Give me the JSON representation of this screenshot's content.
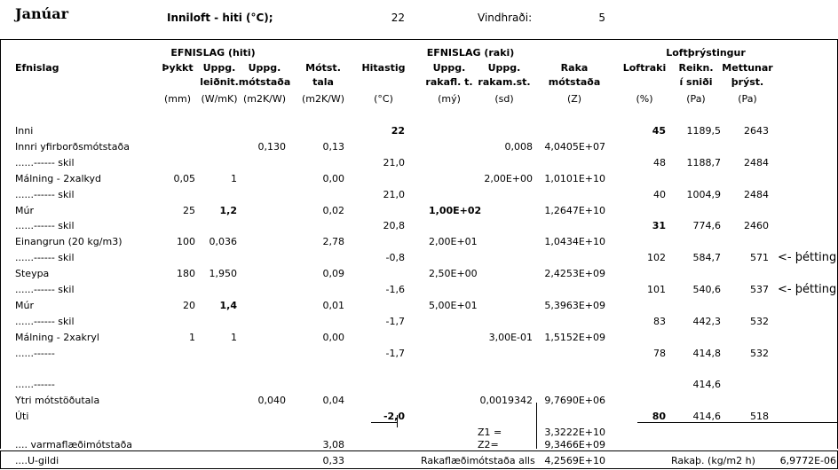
{
  "header": {
    "month": "Janúar",
    "inside_temp_label": "Inniloft - hiti (°C);",
    "inside_temp_value": "22",
    "wind_label": "Vindhraði:",
    "wind_value": "5"
  },
  "groups": {
    "heat": "EFNISLAG (hiti)",
    "moisture": "EFNISLAG (raki)",
    "pressure": "Loftþrýstingur"
  },
  "columns": {
    "material": "Efnislag",
    "thickness": "Þykkt",
    "cond_1": "Uppg.",
    "cond_2": "leiðnit.",
    "tres_1": "Uppg.",
    "tres_2": "mótstaða",
    "mres_1": "Mótst.",
    "mres_2": "tala",
    "temp": "Hitastig",
    "perm_1": "Uppg.",
    "perm_2": "rakafl. t.",
    "vres_1": "Uppg.",
    "vres_2": "rakam.st.",
    "moist_1": "Raka",
    "moist_2": "mótstaða",
    "rh": "Loftraki",
    "calc_1": "Reikn.",
    "calc_2": "í sniði",
    "sat_1": "Mettunar",
    "sat_2": "þrýst."
  },
  "units": {
    "thickness": "(mm)",
    "cond": "(W/mK)",
    "tres": "(m2K/W)",
    "mres": "(m2K/W)",
    "temp": "(°C)",
    "perm": "(mý)",
    "vres": "(sd)",
    "moist": "(Z)",
    "rh": "(%)",
    "calc": "(Pa)",
    "sat": "(Pa)"
  },
  "rows": [
    {
      "name": "Inni",
      "thick": "",
      "cond": "",
      "tres": "",
      "mres": "",
      "temp": "22",
      "perm": "",
      "vres": "",
      "moist": "",
      "rh": "45",
      "calc": "1189,5",
      "sat": "2643",
      "note": ""
    },
    {
      "name": "Innri yfirborðsmótstaða",
      "thick": "",
      "cond": "",
      "tres": "0,130",
      "mres": "0,13",
      "temp": "",
      "perm": "",
      "vres": "0,008",
      "moist": "4,0405E+07",
      "rh": "",
      "calc": "",
      "sat": "",
      "note": ""
    },
    {
      "name": "......------  skil",
      "thick": "",
      "cond": "",
      "tres": "",
      "mres": "",
      "temp": "21,0",
      "perm": "",
      "vres": "",
      "moist": "",
      "rh": "48",
      "calc": "1188,7",
      "sat": "2484",
      "note": ""
    },
    {
      "name": "Málning - 2xalkyd",
      "thick": "0,05",
      "cond": "1",
      "tres": "",
      "mres": "0,00",
      "temp": "",
      "perm": "",
      "vres": "2,00E+00",
      "moist": "1,0101E+10",
      "rh": "",
      "calc": "",
      "sat": "",
      "note": ""
    },
    {
      "name": "......------  skil",
      "thick": "",
      "cond": "",
      "tres": "",
      "mres": "",
      "temp": "21,0",
      "perm": "",
      "vres": "",
      "moist": "",
      "rh": "40",
      "calc": "1004,9",
      "sat": "2484",
      "note": ""
    },
    {
      "name": "Múr",
      "thick": "25",
      "cond": "1,2",
      "tres": "",
      "mres": "0,02",
      "temp": "",
      "perm": "1,00E+02",
      "vres": "",
      "moist": "1,2647E+10",
      "rh": "",
      "calc": "",
      "sat": "",
      "note": ""
    },
    {
      "name": "......------  skil",
      "thick": "",
      "cond": "",
      "tres": "",
      "mres": "",
      "temp": "20,8",
      "perm": "",
      "vres": "",
      "moist": "",
      "rh": "31",
      "calc": "774,6",
      "sat": "2460",
      "note": ""
    },
    {
      "name": "Einangrun (20 kg/m3)",
      "thick": "100",
      "cond": "0,036",
      "tres": "",
      "mres": "2,78",
      "temp": "",
      "perm": "2,00E+01",
      "vres": "",
      "moist": "1,0434E+10",
      "rh": "",
      "calc": "",
      "sat": "",
      "note": ""
    },
    {
      "name": "......------  skil",
      "thick": "",
      "cond": "",
      "tres": "",
      "mres": "",
      "temp": "-0,8",
      "perm": "",
      "vres": "",
      "moist": "",
      "rh": "102",
      "calc": "584,7",
      "sat": "571",
      "note": "<- þétting"
    },
    {
      "name": "Steypa",
      "thick": "180",
      "cond": "1,950",
      "tres": "",
      "mres": "0,09",
      "temp": "",
      "perm": "2,50E+00",
      "vres": "",
      "moist": "2,4253E+09",
      "rh": "",
      "calc": "",
      "sat": "",
      "note": ""
    },
    {
      "name": "......------  skil",
      "thick": "",
      "cond": "",
      "tres": "",
      "mres": "",
      "temp": "-1,6",
      "perm": "",
      "vres": "",
      "moist": "",
      "rh": "101",
      "calc": "540,6",
      "sat": "537",
      "note": "<- þétting"
    },
    {
      "name": "Múr",
      "thick": "20",
      "cond": "1,4",
      "tres": "",
      "mres": "0,01",
      "temp": "",
      "perm": "5,00E+01",
      "vres": "",
      "moist": "5,3963E+09",
      "rh": "",
      "calc": "",
      "sat": "",
      "note": ""
    },
    {
      "name": "......------  skil",
      "thick": "",
      "cond": "",
      "tres": "",
      "mres": "",
      "temp": "-1,7",
      "perm": "",
      "vres": "",
      "moist": "",
      "rh": "83",
      "calc": "442,3",
      "sat": "532",
      "note": ""
    },
    {
      "name": "Málning - 2xakryl",
      "thick": "1",
      "cond": "1",
      "tres": "",
      "mres": "0,00",
      "temp": "",
      "perm": "",
      "vres": "3,00E-01",
      "moist": "1,5152E+09",
      "rh": "",
      "calc": "",
      "sat": "",
      "note": ""
    },
    {
      "name": "......------",
      "thick": "",
      "cond": "",
      "tres": "",
      "mres": "",
      "temp": "-1,7",
      "perm": "",
      "vres": "",
      "moist": "",
      "rh": "78",
      "calc": "414,8",
      "sat": "532",
      "note": ""
    },
    {
      "name": "",
      "thick": "",
      "cond": "",
      "tres": "",
      "mres": "",
      "temp": "",
      "perm": "",
      "vres": "",
      "moist": "",
      "rh": "",
      "calc": "",
      "sat": "",
      "note": ""
    },
    {
      "name": "......------",
      "thick": "",
      "cond": "",
      "tres": "",
      "mres": "",
      "temp": "",
      "perm": "",
      "vres": "",
      "moist": "",
      "rh": "",
      "calc": "414,6",
      "sat": "",
      "note": ""
    },
    {
      "name": "Ytri mótstöðutala",
      "thick": "",
      "cond": "",
      "tres": "0,040",
      "mres": "0,04",
      "temp": "",
      "perm": "",
      "vres": "0,0019342",
      "moist": "9,7690E+06",
      "rh": "",
      "calc": "",
      "sat": "",
      "note": ""
    },
    {
      "name": "Úti",
      "thick": "",
      "cond": "",
      "tres": "",
      "mres": "",
      "temp": "-2,0",
      "perm": "",
      "vres": "",
      "moist": "",
      "rh": "80",
      "calc": "414,6",
      "sat": "518",
      "note": ""
    }
  ],
  "totals": {
    "z1_label": "Z1 =",
    "z1_value": "3,3222E+10",
    "z2_label": "Z2=",
    "z2_value": "9,3466E+09",
    "heat_res_label": ".... varmaflæðimótstaða",
    "heat_res_value": "3,08",
    "u_label": "....U-gildi",
    "u_value": "0,33",
    "moist_flow_label": "Rakaflæðimótstaða alls",
    "moist_flow_value": "4,2569E+10",
    "rakab_label": "Rakaþ. (kg/m2 h)",
    "rakab_value": "6,9772E-06"
  }
}
